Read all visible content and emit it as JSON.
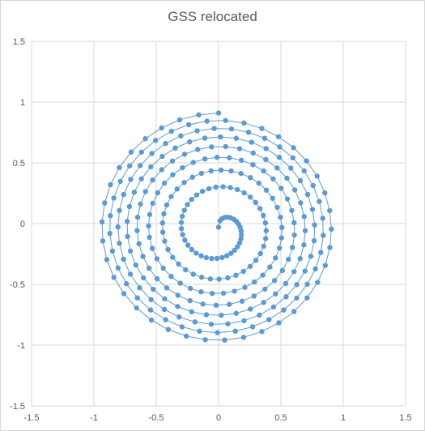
{
  "chart_data": {
    "type": "scatter",
    "title": "GSS relocated",
    "xlabel": "",
    "ylabel": "",
    "xlim": [
      -1.5,
      1.5
    ],
    "ylim": [
      -1.5,
      1.5
    ],
    "xticks": [
      "-1.5",
      "-1",
      "-0.5",
      "0",
      "0.5",
      "1",
      "1.5"
    ],
    "yticks": [
      "-1.5",
      "-1",
      "-0.5",
      "0",
      "0.5",
      "1",
      "1.5"
    ],
    "grid": true,
    "legend": "none",
    "marker_color": "#5b9bd5",
    "line_color": "#5b9bd5",
    "series": [
      {
        "spiral": {
          "start_radius": 0.01,
          "end_radius": 0.95,
          "start_angle_deg": 90,
          "end_angle_deg": -2790,
          "points": 300,
          "center": [
            0,
            -0.04
          ]
        }
      }
    ]
  }
}
